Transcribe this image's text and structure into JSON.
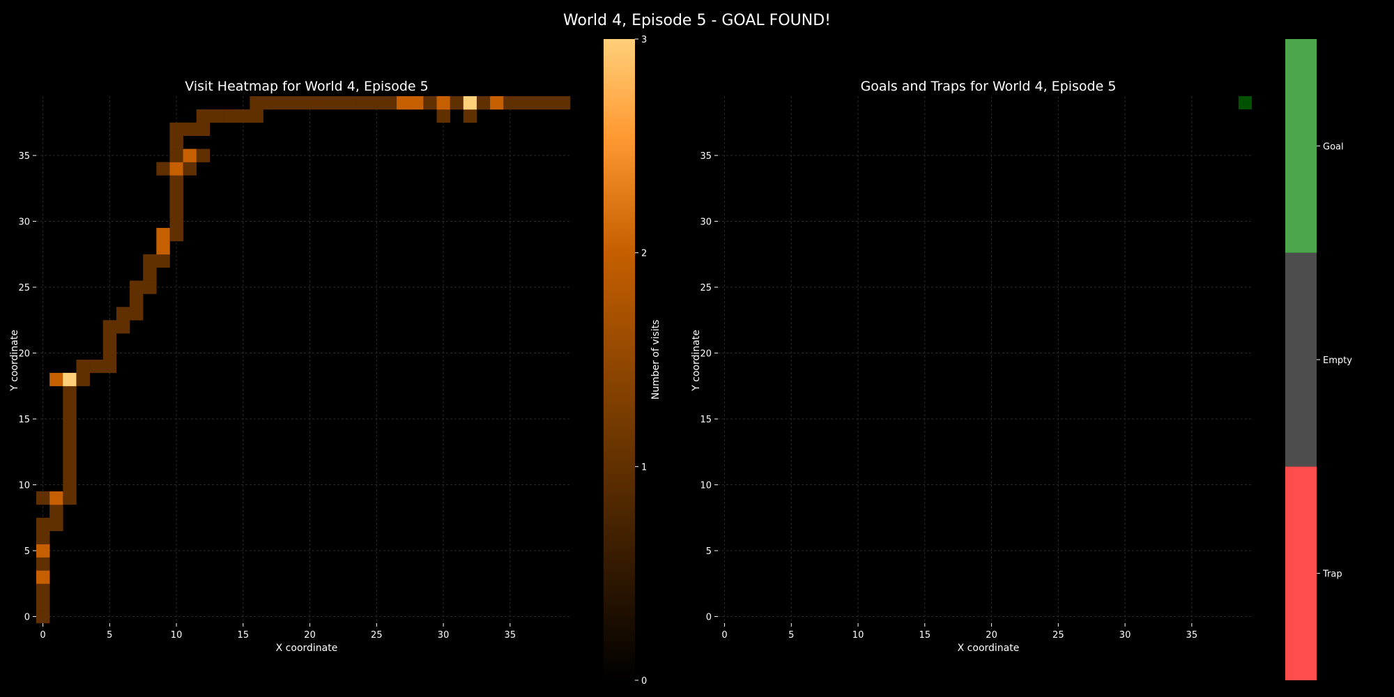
{
  "suptitle": "World 4, Episode 5 - GOAL FOUND!",
  "colors": {
    "background": "#000000",
    "grid": "#2a2a2a",
    "heat_low": "#000000",
    "heat_mid": "#c65f00",
    "heat_high": "#ffcf7a",
    "goal": "#4ca64c",
    "empty": "#4d4d4d",
    "trap": "#ff4d4d",
    "goal_cell": "#005200"
  },
  "chart_data": [
    {
      "type": "heatmap",
      "title": "Visit Heatmap for World 4, Episode 5",
      "xlabel": "X coordinate",
      "ylabel": "Y coordinate",
      "grid_size": [
        40,
        40
      ],
      "xlim": [
        -0.5,
        39.5
      ],
      "ylim": [
        -0.5,
        39.5
      ],
      "x_ticks": [
        0,
        5,
        10,
        15,
        20,
        25,
        30,
        35
      ],
      "y_ticks": [
        0,
        5,
        10,
        15,
        20,
        25,
        30,
        35
      ],
      "grid": true,
      "colorbar": {
        "label": "Number of visits",
        "range": [
          0,
          3
        ],
        "ticks": [
          0,
          1,
          2,
          3
        ]
      },
      "cells": [
        [
          0,
          0,
          1
        ],
        [
          0,
          1,
          1
        ],
        [
          0,
          2,
          1
        ],
        [
          0,
          3,
          2
        ],
        [
          0,
          4,
          1
        ],
        [
          0,
          5,
          2
        ],
        [
          0,
          6,
          1
        ],
        [
          0,
          7,
          1
        ],
        [
          1,
          7,
          1
        ],
        [
          1,
          8,
          1
        ],
        [
          0,
          9,
          1
        ],
        [
          1,
          9,
          2
        ],
        [
          2,
          9,
          1
        ],
        [
          2,
          10,
          1
        ],
        [
          2,
          11,
          1
        ],
        [
          2,
          12,
          1
        ],
        [
          2,
          13,
          1
        ],
        [
          2,
          14,
          1
        ],
        [
          2,
          15,
          1
        ],
        [
          2,
          16,
          1
        ],
        [
          2,
          17,
          1
        ],
        [
          1,
          18,
          2
        ],
        [
          2,
          18,
          3
        ],
        [
          3,
          18,
          1
        ],
        [
          3,
          19,
          1
        ],
        [
          4,
          19,
          1
        ],
        [
          5,
          19,
          1
        ],
        [
          5,
          20,
          1
        ],
        [
          5,
          21,
          1
        ],
        [
          5,
          22,
          1
        ],
        [
          6,
          22,
          1
        ],
        [
          6,
          23,
          1
        ],
        [
          7,
          23,
          1
        ],
        [
          7,
          24,
          1
        ],
        [
          7,
          25,
          1
        ],
        [
          8,
          25,
          1
        ],
        [
          8,
          26,
          1
        ],
        [
          8,
          27,
          1
        ],
        [
          9,
          27,
          1
        ],
        [
          9,
          28,
          2
        ],
        [
          9,
          29,
          2
        ],
        [
          10,
          29,
          1
        ],
        [
          10,
          30,
          1
        ],
        [
          10,
          31,
          1
        ],
        [
          10,
          32,
          1
        ],
        [
          10,
          33,
          1
        ],
        [
          9,
          34,
          1
        ],
        [
          10,
          34,
          2
        ],
        [
          11,
          34,
          1
        ],
        [
          10,
          35,
          1
        ],
        [
          11,
          35,
          2
        ],
        [
          12,
          35,
          1
        ],
        [
          10,
          36,
          1
        ],
        [
          10,
          37,
          1
        ],
        [
          11,
          37,
          1
        ],
        [
          12,
          37,
          1
        ],
        [
          12,
          38,
          1
        ],
        [
          13,
          38,
          1
        ],
        [
          14,
          38,
          1
        ],
        [
          15,
          38,
          1
        ],
        [
          16,
          38,
          1
        ],
        [
          30,
          38,
          1
        ],
        [
          32,
          38,
          1
        ],
        [
          16,
          39,
          1
        ],
        [
          17,
          39,
          1
        ],
        [
          18,
          39,
          1
        ],
        [
          19,
          39,
          1
        ],
        [
          20,
          39,
          1
        ],
        [
          21,
          39,
          1
        ],
        [
          22,
          39,
          1
        ],
        [
          23,
          39,
          1
        ],
        [
          24,
          39,
          1
        ],
        [
          25,
          39,
          1
        ],
        [
          26,
          39,
          1
        ],
        [
          27,
          39,
          2
        ],
        [
          28,
          39,
          2
        ],
        [
          29,
          39,
          1
        ],
        [
          30,
          39,
          2
        ],
        [
          31,
          39,
          1
        ],
        [
          32,
          39,
          3
        ],
        [
          33,
          39,
          1
        ],
        [
          34,
          39,
          2
        ],
        [
          35,
          39,
          1
        ],
        [
          36,
          39,
          1
        ],
        [
          37,
          39,
          1
        ],
        [
          38,
          39,
          1
        ],
        [
          39,
          39,
          1
        ]
      ]
    },
    {
      "type": "heatmap",
      "title": "Goals and Traps for World 4, Episode 5",
      "xlabel": "X coordinate",
      "ylabel": "Y coordinate",
      "grid_size": [
        40,
        40
      ],
      "xlim": [
        -0.5,
        39.5
      ],
      "ylim": [
        -0.5,
        39.5
      ],
      "x_ticks": [
        0,
        5,
        10,
        15,
        20,
        25,
        30,
        35
      ],
      "y_ticks": [
        0,
        5,
        10,
        15,
        20,
        25,
        30,
        35
      ],
      "grid": true,
      "goal_cells": [
        [
          39,
          39
        ]
      ],
      "trap_cells": [],
      "colorbar": {
        "categories": [
          "Trap",
          "Empty",
          "Goal"
        ]
      }
    }
  ]
}
